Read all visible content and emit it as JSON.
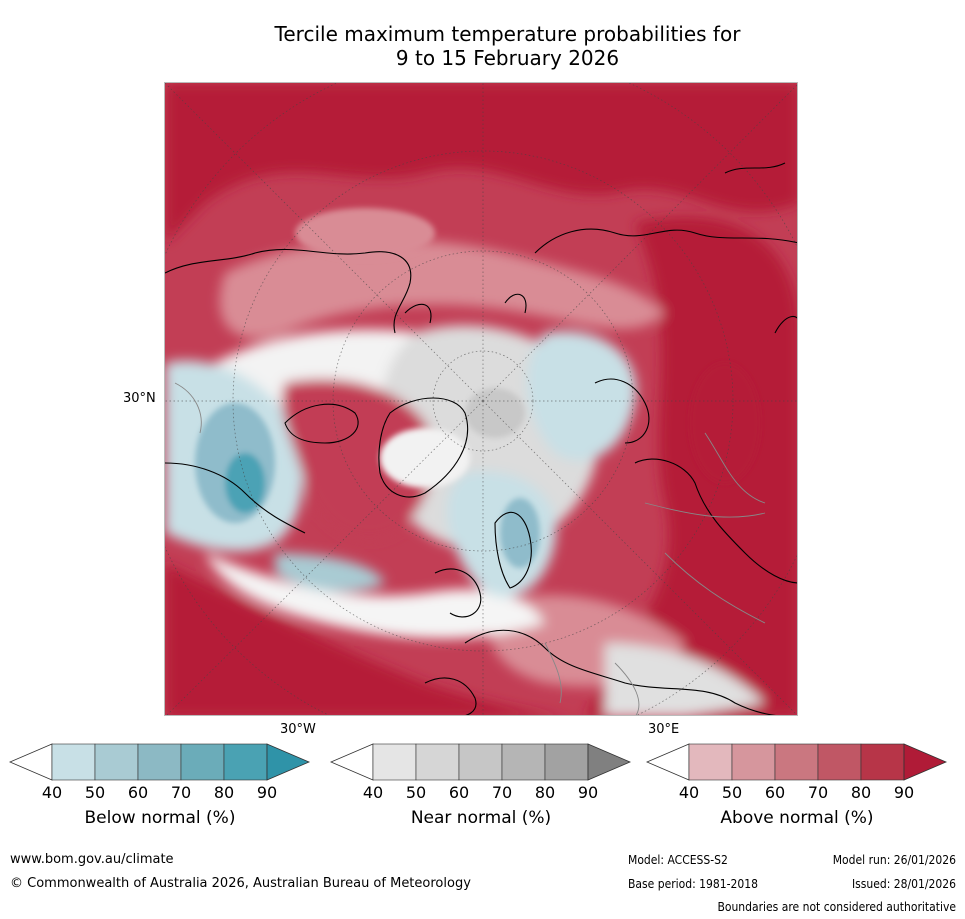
{
  "title": {
    "line1": "Tercile maximum temperature probabilities for",
    "line2": "9 to 15 February 2026"
  },
  "map": {
    "description_icon": "polar-stereographic-map",
    "lat_label": "30°N",
    "lon_label_left": "30°W",
    "lon_label_right": "30°E",
    "colors": {
      "above_strong": "#b51d38",
      "above_mid": "#c9586a",
      "above_light": "#d98c95",
      "below_light": "#c8e0e6",
      "below_mid": "#8fbccb",
      "below_strong": "#4ba2b5",
      "near_light": "#e6e6e6",
      "near_mid": "#cfcfcf",
      "land_line": "#000000",
      "border_line": "#888888"
    }
  },
  "colorbars": [
    {
      "name": "below",
      "label": "Below normal (%)",
      "ticks": [
        "40",
        "50",
        "60",
        "70",
        "80",
        "90"
      ],
      "colors": [
        "#ffffff",
        "#c8e0e6",
        "#a9cbd3",
        "#8cb9c4",
        "#6bacb9",
        "#4aa2b3",
        "#2f93a8"
      ]
    },
    {
      "name": "near",
      "label": "Near normal (%)",
      "ticks": [
        "40",
        "50",
        "60",
        "70",
        "80",
        "90"
      ],
      "colors": [
        "#ffffff",
        "#e5e5e5",
        "#d6d6d6",
        "#c6c6c6",
        "#b5b5b5",
        "#a2a2a2",
        "#808080"
      ]
    },
    {
      "name": "above",
      "label": "Above normal (%)",
      "ticks": [
        "40",
        "50",
        "60",
        "70",
        "80",
        "90"
      ],
      "colors": [
        "#ffffff",
        "#e3b8bd",
        "#d6969d",
        "#ca7780",
        "#c05765",
        "#b73548",
        "#b01b37"
      ]
    }
  ],
  "footer": {
    "website": "www.bom.gov.au/climate",
    "copyright": "© Commonwealth of Australia 2026, Australian Bureau of Meteorology",
    "model": "Model: ACCESS-S2",
    "base_period": "Base period: 1981-2018",
    "model_run": "Model run: 26/01/2026",
    "issued": "Issued: 28/01/2026",
    "disclaimer": "Boundaries are not considered authoritative"
  }
}
